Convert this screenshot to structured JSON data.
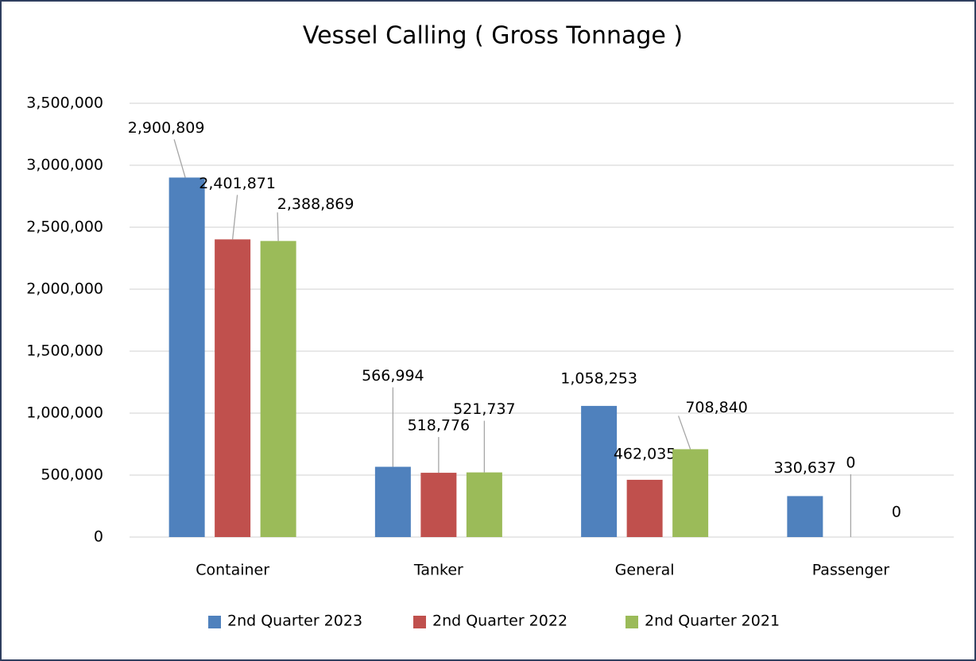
{
  "chart_data": {
    "type": "bar",
    "title": "Vessel Calling ( Gross Tonnage )",
    "categories": [
      "Container",
      "Tanker",
      "General",
      "Passenger"
    ],
    "series": [
      {
        "name": "2nd Quarter 2023",
        "color": "#4f81bd",
        "values": [
          2900809,
          566994,
          1058253,
          330637
        ],
        "value_labels": [
          "2,900,809",
          "566,994",
          "1,058,253",
          "330,637"
        ]
      },
      {
        "name": "2nd Quarter 2022",
        "color": "#c0504d",
        "values": [
          2401871,
          518776,
          462035,
          0
        ],
        "value_labels": [
          "2,401,871",
          "518,776",
          "462,035",
          "0"
        ]
      },
      {
        "name": "2nd Quarter 2021",
        "color": "#9bbb59",
        "values": [
          2388869,
          521737,
          708840,
          0
        ],
        "value_labels": [
          "2,388,869",
          "521,737",
          "708,840",
          "0"
        ]
      }
    ],
    "ylim": [
      0,
      3500000
    ],
    "yticks": [
      0,
      {
        "value": 500000,
        "label": "500,000"
      },
      {
        "value": 1000000,
        "label": "1,000,000"
      },
      {
        "value": 1500000,
        "label": "1,500,000"
      },
      {
        "value": 2000000,
        "label": "2,000,000"
      },
      {
        "value": 2500000,
        "label": "2,500,000"
      },
      {
        "value": 3000000,
        "label": "3,000,000"
      },
      {
        "value": 3500000,
        "label": "3,500,000"
      }
    ],
    "grid": true,
    "legend": "bottom"
  }
}
